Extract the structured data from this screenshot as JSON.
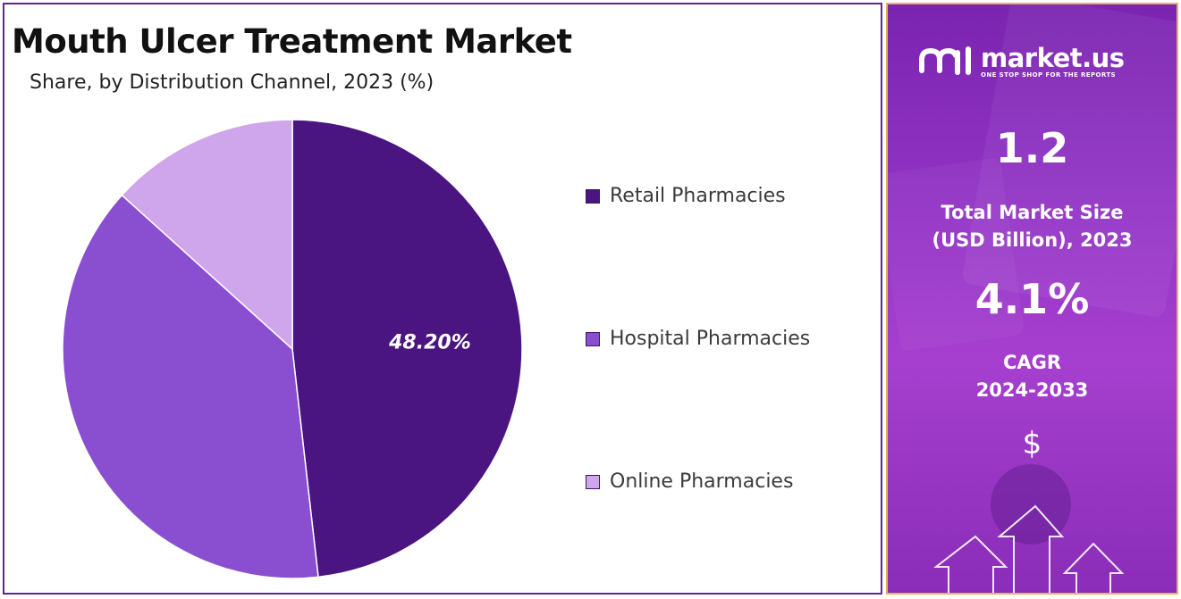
{
  "left_panel": {
    "title": "Mouth Ulcer Treatment Market",
    "subtitle": "Share, by Distribution Channel, 2023 (%)"
  },
  "chart_data": {
    "type": "pie",
    "title": "Mouth Ulcer Treatment Market",
    "subtitle": "Share, by Distribution Channel, 2023 (%)",
    "categories": [
      "Retail Pharmacies",
      "Hospital Pharmacies",
      "Online Pharmacies"
    ],
    "values": [
      48.2,
      38.5,
      13.3
    ],
    "colors": [
      "#4a1580",
      "#8a4fd0",
      "#cfa6ec"
    ],
    "data_labels": [
      "48.20%",
      "",
      ""
    ],
    "legend_position": "right",
    "start_angle_deg": 0,
    "direction": "clockwise"
  },
  "right_panel": {
    "brand_name": "market.us",
    "brand_tagline": "ONE STOP SHOP FOR THE REPORTS",
    "market_size_value": "1.2",
    "market_size_label_line1": "Total Market Size",
    "market_size_label_line2": "(USD Billion), 2023",
    "cagr_value": "4.1%",
    "cagr_label_line1": "CAGR",
    "cagr_label_line2": "2024-2033",
    "currency_symbol": "$"
  }
}
